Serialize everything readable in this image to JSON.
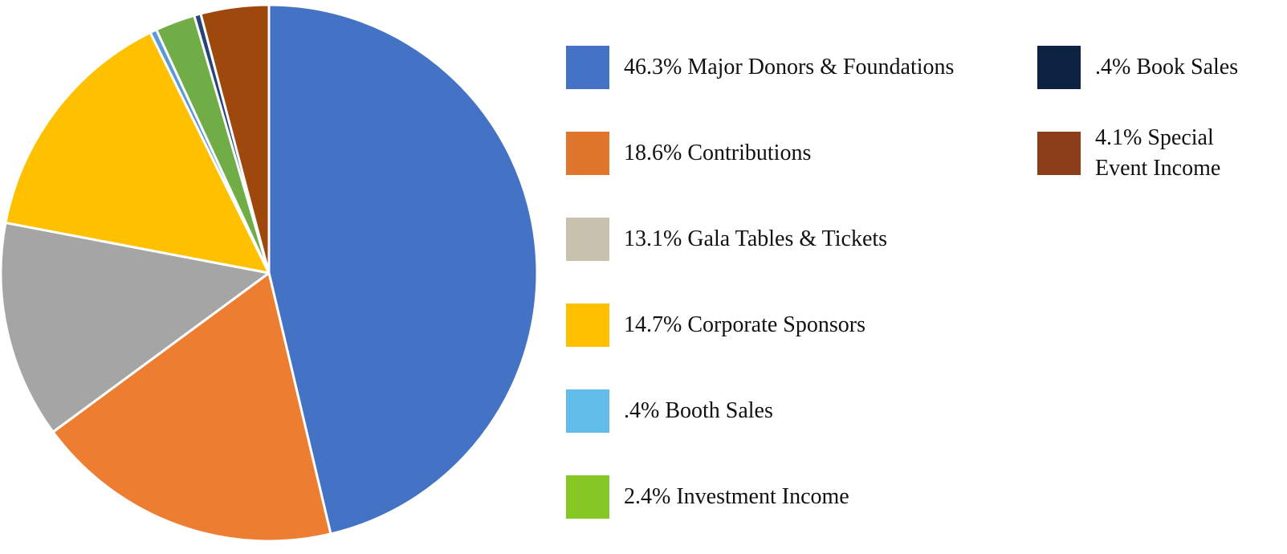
{
  "chart_data": {
    "type": "pie",
    "categories": [
      "46.3% Major Donors & Foundations",
      "18.6% Contributions",
      "13.1% Gala Tables & Tickets",
      "14.7% Corporate Sponsors",
      ".4% Booth Sales",
      "2.4% Investment Income",
      ".4% Book Sales",
      "4.1% Special Event Income"
    ],
    "values": [
      46.3,
      18.6,
      13.1,
      14.7,
      0.4,
      2.4,
      0.4,
      4.1
    ],
    "colors": [
      "#4472c4",
      "#ed7d31",
      "#a5a5a5",
      "#ffc000",
      "#5b9bd5",
      "#70ad47",
      "#264478",
      "#9e480e"
    ],
    "legend_colors": [
      "#4472c4",
      "#e0762c",
      "#c8c1ad",
      "#ffc000",
      "#63bdeb",
      "#86c726",
      "#0d2240",
      "#8b3e17"
    ],
    "legend": "right"
  }
}
